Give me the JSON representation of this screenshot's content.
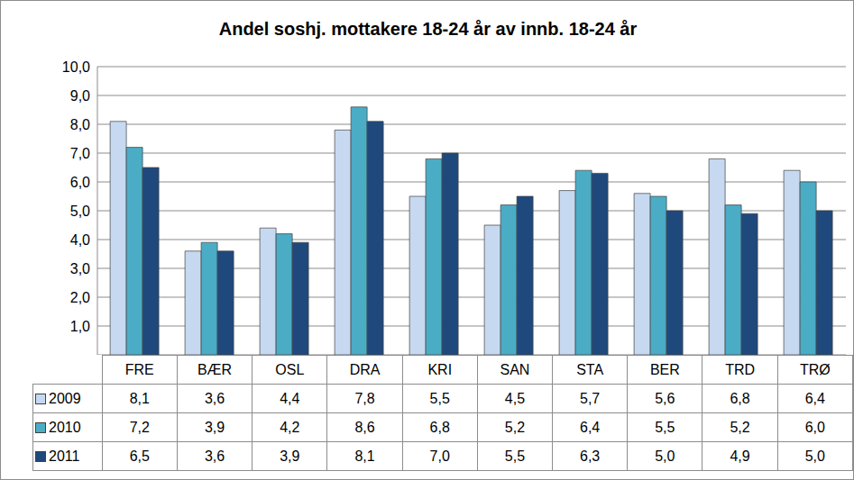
{
  "chart_data": {
    "type": "bar",
    "title": "Andel soshj. mottakere 18-24 år av innb. 18-24 år",
    "categories": [
      "FRE",
      "BÆR",
      "OSL",
      "DRA",
      "KRI",
      "SAN",
      "STA",
      "BER",
      "TRD",
      "TRØ"
    ],
    "series": [
      {
        "name": "2009",
        "color": "#c6d9f1",
        "values": [
          8.1,
          3.6,
          4.4,
          7.8,
          5.5,
          4.5,
          5.7,
          5.6,
          6.8,
          6.4
        ],
        "value_labels": [
          "8,1",
          "3,6",
          "4,4",
          "7,8",
          "5,5",
          "4,5",
          "5,7",
          "5,6",
          "6,8",
          "6,4"
        ]
      },
      {
        "name": "2010",
        "color": "#4bacc6",
        "values": [
          7.2,
          3.9,
          4.2,
          8.6,
          6.8,
          5.2,
          6.4,
          5.5,
          5.2,
          6.0
        ],
        "value_labels": [
          "7,2",
          "3,9",
          "4,2",
          "8,6",
          "6,8",
          "5,2",
          "6,4",
          "5,5",
          "5,2",
          "6,0"
        ]
      },
      {
        "name": "2011",
        "color": "#1f497d",
        "values": [
          6.5,
          3.6,
          3.9,
          8.1,
          7.0,
          5.5,
          6.3,
          5.0,
          4.9,
          5.0
        ],
        "value_labels": [
          "6,5",
          "3,6",
          "3,9",
          "8,1",
          "7,0",
          "5,5",
          "6,3",
          "5,0",
          "4,9",
          "5,0"
        ]
      }
    ],
    "ylim": [
      0,
      10
    ],
    "yticks": [
      {
        "value": 0,
        "label": "-"
      },
      {
        "value": 1,
        "label": "1,0"
      },
      {
        "value": 2,
        "label": "2,0"
      },
      {
        "value": 3,
        "label": "3,0"
      },
      {
        "value": 4,
        "label": "4,0"
      },
      {
        "value": 5,
        "label": "5,0"
      },
      {
        "value": 6,
        "label": "6,0"
      },
      {
        "value": 7,
        "label": "7,0"
      },
      {
        "value": 8,
        "label": "8,0"
      },
      {
        "value": 9,
        "label": "9,0"
      },
      {
        "value": 10,
        "label": "10,0"
      }
    ],
    "grid": true
  }
}
